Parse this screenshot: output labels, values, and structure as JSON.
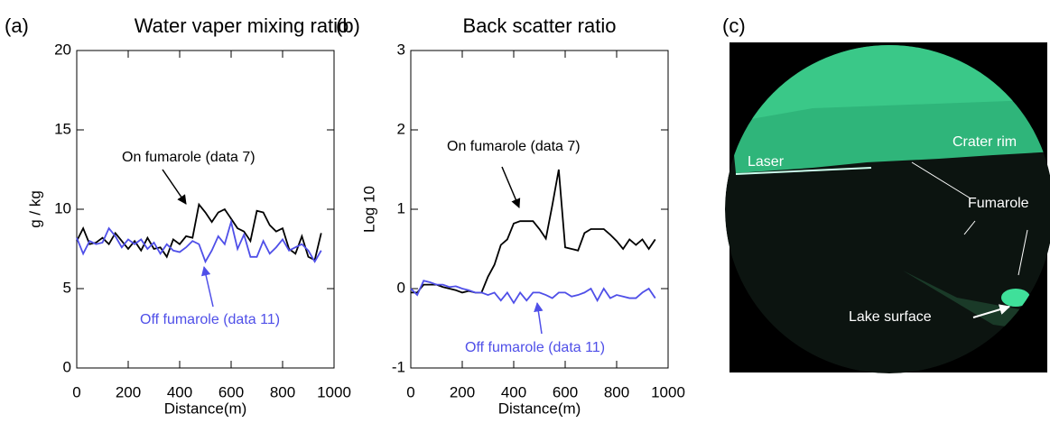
{
  "chart_data": [
    {
      "type": "line",
      "panel": "(a)",
      "title": "Water vaper mixing ratio",
      "xlabel": "Distance(m)",
      "ylabel": "g / kg",
      "x": [
        0,
        25,
        50,
        75,
        100,
        125,
        150,
        175,
        200,
        225,
        250,
        275,
        300,
        325,
        350,
        375,
        400,
        425,
        450,
        475,
        500,
        525,
        550,
        575,
        600,
        625,
        650,
        675,
        700,
        725,
        750,
        775,
        800,
        825,
        850,
        875,
        900,
        925,
        950
      ],
      "series": [
        {
          "name": "On fumarole (data 7)",
          "color": "#000000",
          "values": [
            8.0,
            8.8,
            7.8,
            7.9,
            8.2,
            7.8,
            8.5,
            8.0,
            7.5,
            8.0,
            7.4,
            8.2,
            7.5,
            7.6,
            7.0,
            8.1,
            7.8,
            8.3,
            8.2,
            10.3,
            9.8,
            9.2,
            9.8,
            10.0,
            9.4,
            8.8,
            8.6,
            8.0,
            9.9,
            9.8,
            9.0,
            8.6,
            8.8,
            7.5,
            7.2,
            8.3,
            7.0,
            6.8,
            8.5
          ]
        },
        {
          "name": "Off fumarole (data 11)",
          "color": "#4f4fe8",
          "values": [
            8.2,
            7.2,
            8.0,
            7.8,
            7.9,
            8.8,
            8.3,
            7.6,
            8.1,
            7.8,
            8.1,
            7.5,
            7.9,
            7.2,
            7.8,
            7.4,
            7.3,
            7.6,
            8.0,
            7.8,
            6.7,
            7.4,
            8.3,
            7.8,
            9.2,
            7.5,
            8.4,
            7.0,
            7.0,
            8.0,
            7.2,
            7.6,
            8.1,
            7.4,
            7.6,
            7.8,
            7.4,
            6.7,
            7.4
          ]
        }
      ],
      "xlim": [
        0,
        1000
      ],
      "xticks": [
        0,
        200,
        400,
        600,
        800,
        1000
      ],
      "ylim": [
        0,
        20
      ],
      "yticks": [
        0,
        5,
        10,
        15,
        20
      ]
    },
    {
      "type": "line",
      "panel": "(b)",
      "title": "Back scatter ratio",
      "xlabel": "Distance(m)",
      "ylabel": "Log 10",
      "x": [
        0,
        25,
        50,
        75,
        100,
        125,
        150,
        175,
        200,
        225,
        250,
        275,
        300,
        325,
        350,
        375,
        400,
        425,
        450,
        475,
        500,
        525,
        550,
        575,
        600,
        625,
        650,
        675,
        700,
        725,
        750,
        775,
        800,
        825,
        850,
        875,
        900,
        925,
        950
      ],
      "series": [
        {
          "name": "On fumarole (data 7)",
          "color": "#000000",
          "values": [
            -0.05,
            -0.05,
            0.05,
            0.05,
            0.05,
            0.02,
            0.0,
            -0.02,
            -0.05,
            -0.03,
            -0.05,
            -0.05,
            0.15,
            0.3,
            0.55,
            0.62,
            0.82,
            0.85,
            0.85,
            0.85,
            0.75,
            0.63,
            1.05,
            1.5,
            0.52,
            0.5,
            0.48,
            0.7,
            0.75,
            0.75,
            0.75,
            0.68,
            0.6,
            0.5,
            0.62,
            0.55,
            0.62,
            0.5,
            0.62
          ]
        },
        {
          "name": "Off fumarole (data 11)",
          "color": "#4f4fe8",
          "values": [
            0.0,
            -0.08,
            0.1,
            0.08,
            0.05,
            0.05,
            0.02,
            0.03,
            0.0,
            -0.02,
            -0.05,
            -0.05,
            -0.08,
            -0.05,
            -0.15,
            -0.05,
            -0.18,
            -0.05,
            -0.15,
            -0.05,
            -0.05,
            -0.08,
            -0.12,
            -0.05,
            -0.05,
            -0.1,
            -0.08,
            -0.05,
            0.0,
            -0.15,
            0.0,
            -0.12,
            -0.08,
            -0.1,
            -0.12,
            -0.12,
            -0.05,
            0.0,
            -0.12
          ]
        }
      ],
      "xlim": [
        0,
        1000
      ],
      "xticks": [
        0,
        200,
        400,
        600,
        800,
        1000
      ],
      "ylim": [
        -1,
        3
      ],
      "yticks": [
        -1,
        0,
        1,
        2,
        3
      ]
    }
  ],
  "photo": {
    "panel": "(c)",
    "labels": [
      "Crater rim",
      "Laser",
      "Fumarole",
      "Lake surface"
    ]
  }
}
